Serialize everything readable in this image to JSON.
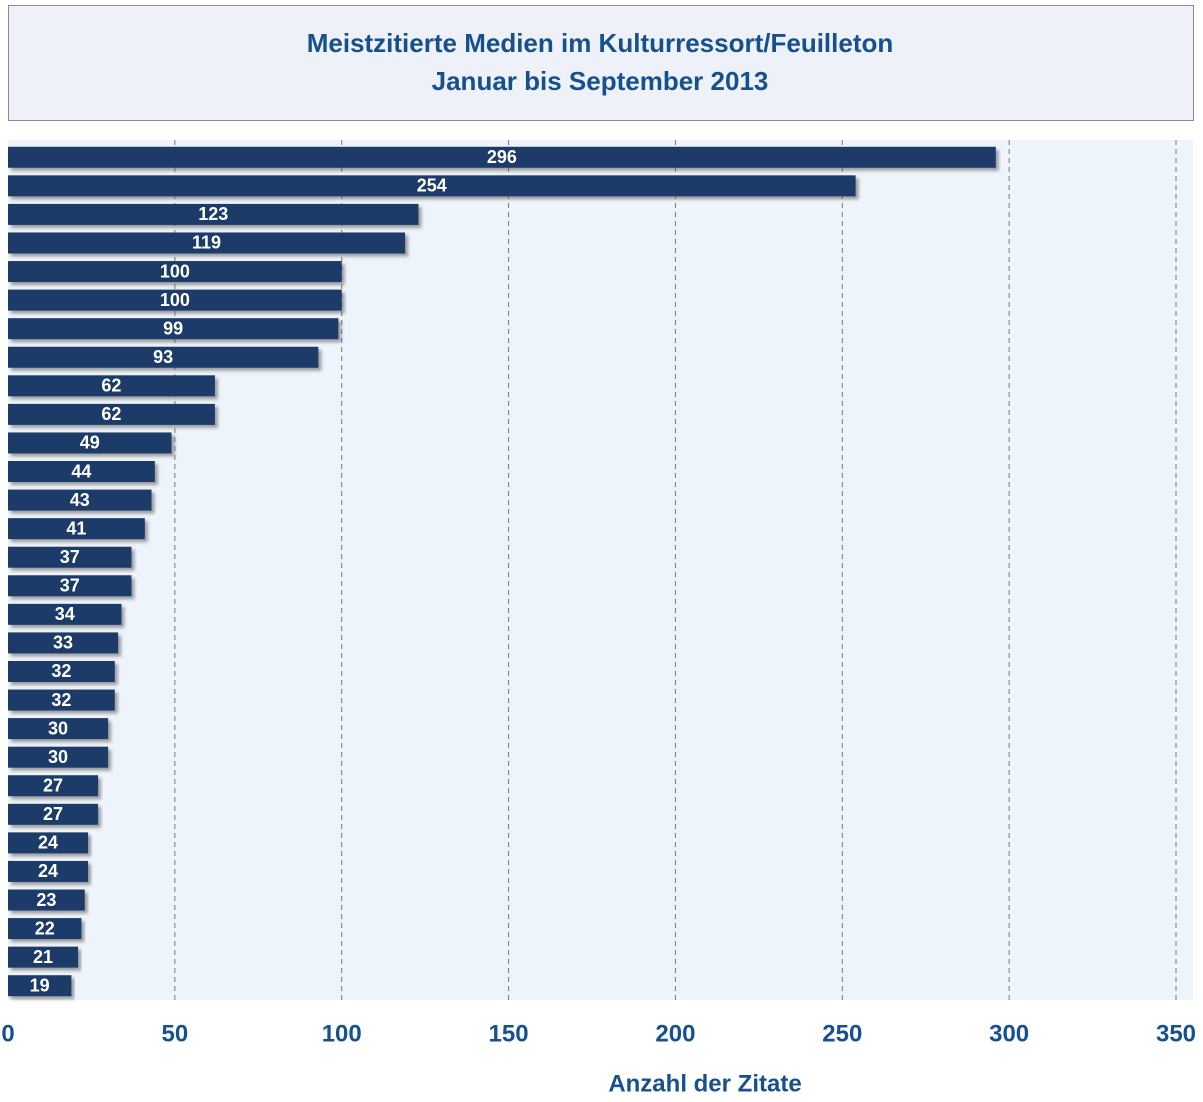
{
  "chart_data": {
    "type": "barh",
    "title": "Meistzitierte Medien im Kulturressort/Feuilleton",
    "subtitle": "Januar bis September 2013",
    "x_label": "Anzahl der Zitate",
    "values": [
      296,
      254,
      123,
      119,
      100,
      100,
      99,
      93,
      62,
      62,
      49,
      44,
      43,
      41,
      37,
      37,
      34,
      33,
      32,
      32,
      30,
      30,
      27,
      27,
      24,
      24,
      23,
      22,
      21,
      19
    ],
    "color": "#1c3a68",
    "xlim": [
      0,
      350
    ],
    "xticks": [
      0,
      50,
      100,
      150,
      200,
      250,
      300,
      350
    ],
    "grid": true
  }
}
